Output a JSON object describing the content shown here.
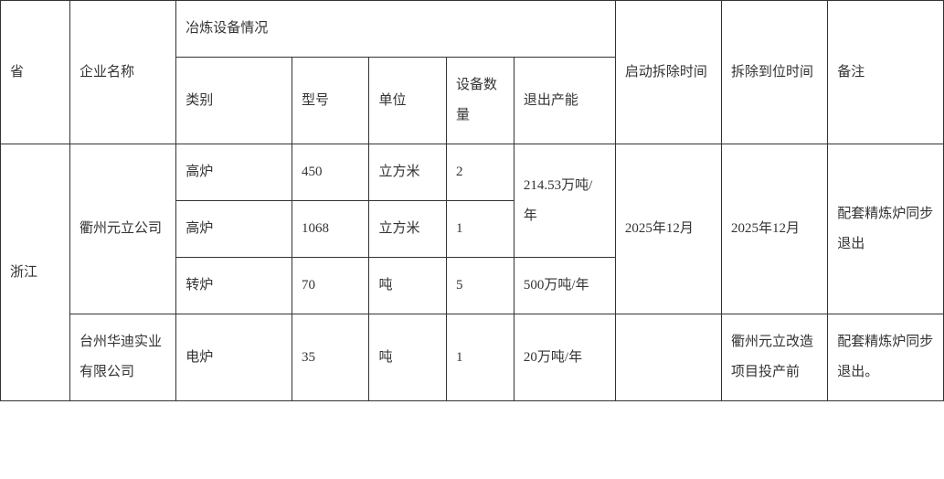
{
  "headers": {
    "province": "省",
    "company": "企业名称",
    "equipmentGroup": "冶炼设备情况",
    "category": "类别",
    "model": "型号",
    "unit": "单位",
    "qty": "设备数量",
    "capacity": "退出产能",
    "startRemoval": "启动拆除时间",
    "completeRemoval": "拆除到位时间",
    "remark": "备注"
  },
  "province": "浙江",
  "companies": [
    {
      "name": "衢州元立公司",
      "startRemoval": "2025年12月",
      "completeRemoval": "2025年12月",
      "remark": "配套精炼炉同步退出",
      "rows": [
        {
          "category": "高炉",
          "model": "450",
          "unit": "立方米",
          "qty": "2",
          "capacity": "214.53万吨/年"
        },
        {
          "category": "高炉",
          "model": "1068",
          "unit": "立方米",
          "qty": "1"
        },
        {
          "category": "转炉",
          "model": "70",
          "unit": "吨",
          "qty": "5",
          "capacity": "500万吨/年"
        }
      ]
    },
    {
      "name": "台州华迪实业有限公司",
      "startRemoval": "",
      "completeRemoval": "衢州元立改造项目投产前",
      "remark": "配套精炼炉同步退出。",
      "rows": [
        {
          "category": "电炉",
          "model": "35",
          "unit": "吨",
          "qty": "1",
          "capacity": "20万吨/年"
        }
      ]
    }
  ],
  "style": {
    "borderColor": "#333333",
    "textColor": "#333333",
    "backgroundColor": "#ffffff",
    "fontFamily": "SimSun",
    "fontSize": 15,
    "lineHeight": 2.2,
    "tableWidth": 1033,
    "tableHeight": 524
  }
}
